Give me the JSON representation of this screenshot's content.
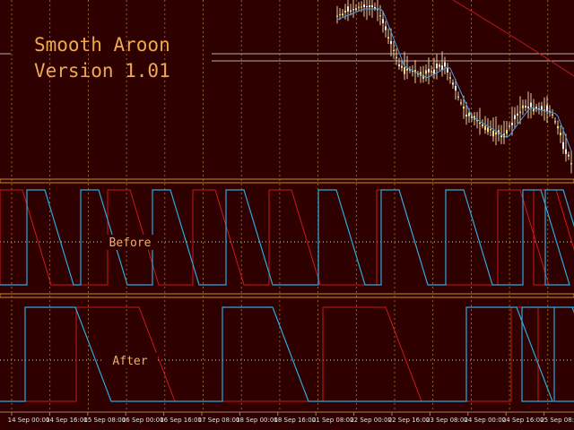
{
  "title": {
    "line1": "Smooth Aroon",
    "line2": "Version 1.01"
  },
  "panels": [
    {
      "label": "Before"
    },
    {
      "label": "After"
    }
  ],
  "time_axis": {
    "labels": [
      "14 Sep 00:00",
      "14 Sep 16:00",
      "15 Sep 08:00",
      "16 Sep 00:00",
      "16 Sep 16:00",
      "17 Sep 08:00",
      "18 Sep 00:00",
      "18 Sep 16:00",
      "21 Sep 08:00",
      "22 Sep 00:00",
      "22 Sep 16:00",
      "23 Sep 08:00",
      "24 Sep 00:00",
      "24 Sep 16:00",
      "25 Sep 08:00"
    ]
  }
}
